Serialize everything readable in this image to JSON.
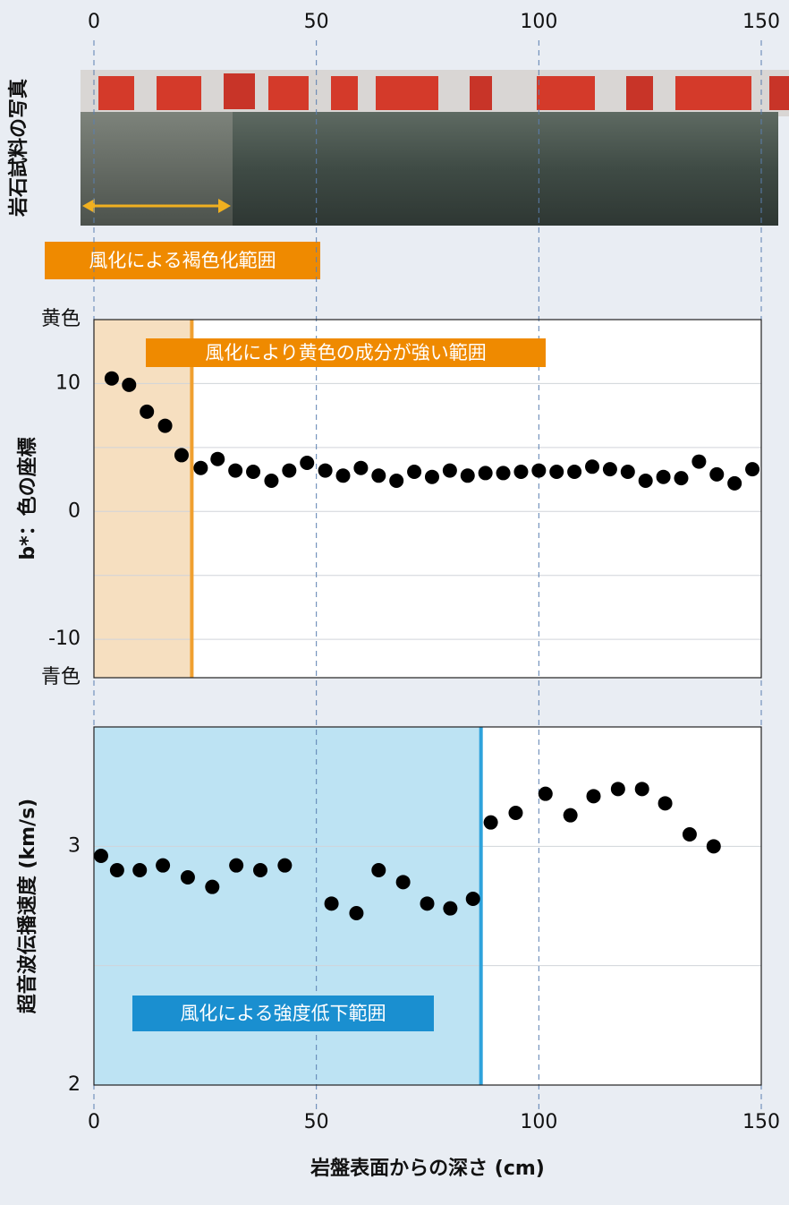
{
  "chart_data": [
    {
      "type": "image",
      "ylabel": "岩石試料の写真",
      "annotation": "風化による褐色化範囲",
      "annotation_color": "#ef8a00",
      "xlim": [
        0,
        150
      ],
      "xticks": [
        0,
        50,
        100,
        150
      ]
    },
    {
      "type": "scatter",
      "ylabel": "b*：色の座標",
      "color": "#000000",
      "x": [
        4,
        7.9,
        11.9,
        16,
        19.7,
        24,
        27.8,
        31.8,
        35.8,
        39.9,
        43.9,
        47.9,
        52,
        56,
        60,
        64,
        68,
        72,
        76,
        80,
        84,
        88,
        92,
        96,
        100,
        104,
        108,
        112,
        116,
        120,
        124,
        128,
        132,
        136,
        140,
        144,
        148
      ],
      "values": [
        10.4,
        9.9,
        7.8,
        6.7,
        4.4,
        3.4,
        4.1,
        3.2,
        3.1,
        2.4,
        3.2,
        3.8,
        3.2,
        2.8,
        3.4,
        2.8,
        2.4,
        3.1,
        2.7,
        3.2,
        2.8,
        3.0,
        3.0,
        3.1,
        3.2,
        3.1,
        3.1,
        3.5,
        3.3,
        3.1,
        2.4,
        2.7,
        2.6,
        3.9,
        2.9,
        2.2,
        3.3
      ],
      "xlim": [
        0,
        150
      ],
      "ylim": [
        -13,
        15
      ],
      "yticks": [
        {
          "value": 15,
          "label": "黄色"
        },
        10,
        0,
        -10,
        {
          "value": -13,
          "label": "青色"
        }
      ],
      "minor_yticks": [
        5,
        -5
      ],
      "highlight": {
        "x_end": 22,
        "fill": "#f6dfc0",
        "line_color": "#f0a030",
        "label": "風化により黄色の成分が強い範囲",
        "label_color": "#ef8a00"
      }
    },
    {
      "type": "scatter",
      "ylabel": "超音波伝播速度 (km/s)",
      "xlabel": "岩盤表面からの深さ (cm)",
      "color": "#000000",
      "x": [
        1.6,
        5.2,
        10.3,
        15.5,
        21.1,
        26.6,
        32,
        37.4,
        42.9,
        53.4,
        59,
        64,
        69.5,
        74.9,
        80.1,
        85.2,
        89.2,
        94.8,
        101.5,
        107.1,
        112.3,
        117.8,
        123.2,
        128.4,
        133.9,
        139.3
      ],
      "values": [
        2.96,
        2.9,
        2.9,
        2.92,
        2.87,
        2.83,
        2.92,
        2.9,
        2.92,
        2.76,
        2.72,
        2.9,
        2.85,
        2.76,
        2.74,
        2.78,
        3.1,
        3.14,
        3.22,
        3.13,
        3.21,
        3.24,
        3.24,
        3.18,
        3.05,
        3.0
      ],
      "xlim": [
        0,
        150
      ],
      "xticks": [
        0,
        50,
        100,
        150
      ],
      "ylim": [
        2,
        3.5
      ],
      "yticks": [
        2,
        3
      ],
      "minor_yticks": [
        2.5
      ],
      "highlight": {
        "x_end": 87,
        "fill": "#bde3f3",
        "line_color": "#2ea3dc",
        "label": "風化による強度低下範囲",
        "label_color": "#1a8fd0"
      }
    }
  ]
}
